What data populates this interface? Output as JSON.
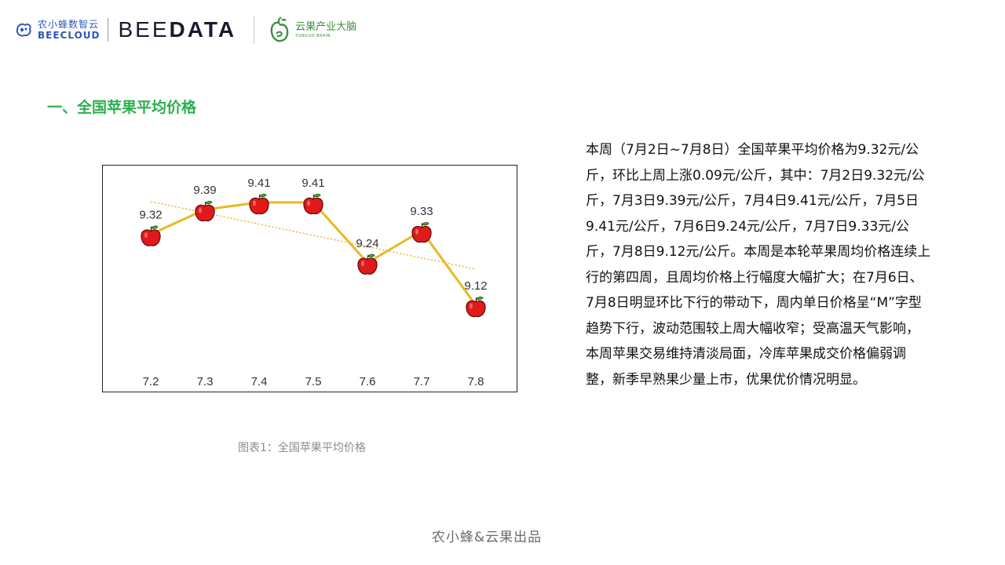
{
  "header": {
    "beecloud_cn": "农小蜂数智云",
    "beecloud_en": "BEECLOUD",
    "beedata_light": "BEE",
    "beedata_bold": "DATA",
    "yunguo_cn": "云果产业大脑",
    "yunguo_en": "YUNGUO BRAIN"
  },
  "section_title": "一、全国苹果平均价格",
  "chart_data": {
    "type": "line",
    "categories": [
      "7.2",
      "7.3",
      "7.4",
      "7.5",
      "7.6",
      "7.7",
      "7.8"
    ],
    "values": [
      9.32,
      9.39,
      9.41,
      9.41,
      9.24,
      9.33,
      9.12
    ],
    "value_labels": [
      "9.32",
      "9.39",
      "9.41",
      "9.41",
      "9.24",
      "9.33",
      "9.12"
    ],
    "marker": "apple-icon",
    "trendline": "linear, dotted",
    "ylim": [
      9.0,
      9.5
    ],
    "grid": false,
    "colors": {
      "line": "#e8b923",
      "trend": "#e0b010",
      "apple": "#e01a1a"
    }
  },
  "caption": "图表1：全国苹果平均价格",
  "description": "本周（7月2日~7月8日）全国苹果平均价格为9.32元/公斤，环比上周上涨0.09元/公斤，其中：7月2日9.32元/公斤，7月3日9.39元/公斤，7月4日9.41元/公斤，7月5日9.41元/公斤，7月6日9.24元/公斤，7月7日9.33元/公斤，7月8日9.12元/公斤。本周是本轮苹果周均价格连续上行的第四周，且周均价格上行幅度大幅扩大；在7月6日、7月8日明显环比下行的带动下，周内单日价格呈“M”字型趋势下行，波动范围较上周大幅收窄；受高温天气影响，本周苹果交易维持清淡局面，冷库苹果成交价格偏弱调整，新季早熟果少量上市，优果优价情况明显。",
  "footer": "农小蜂&云果出品"
}
